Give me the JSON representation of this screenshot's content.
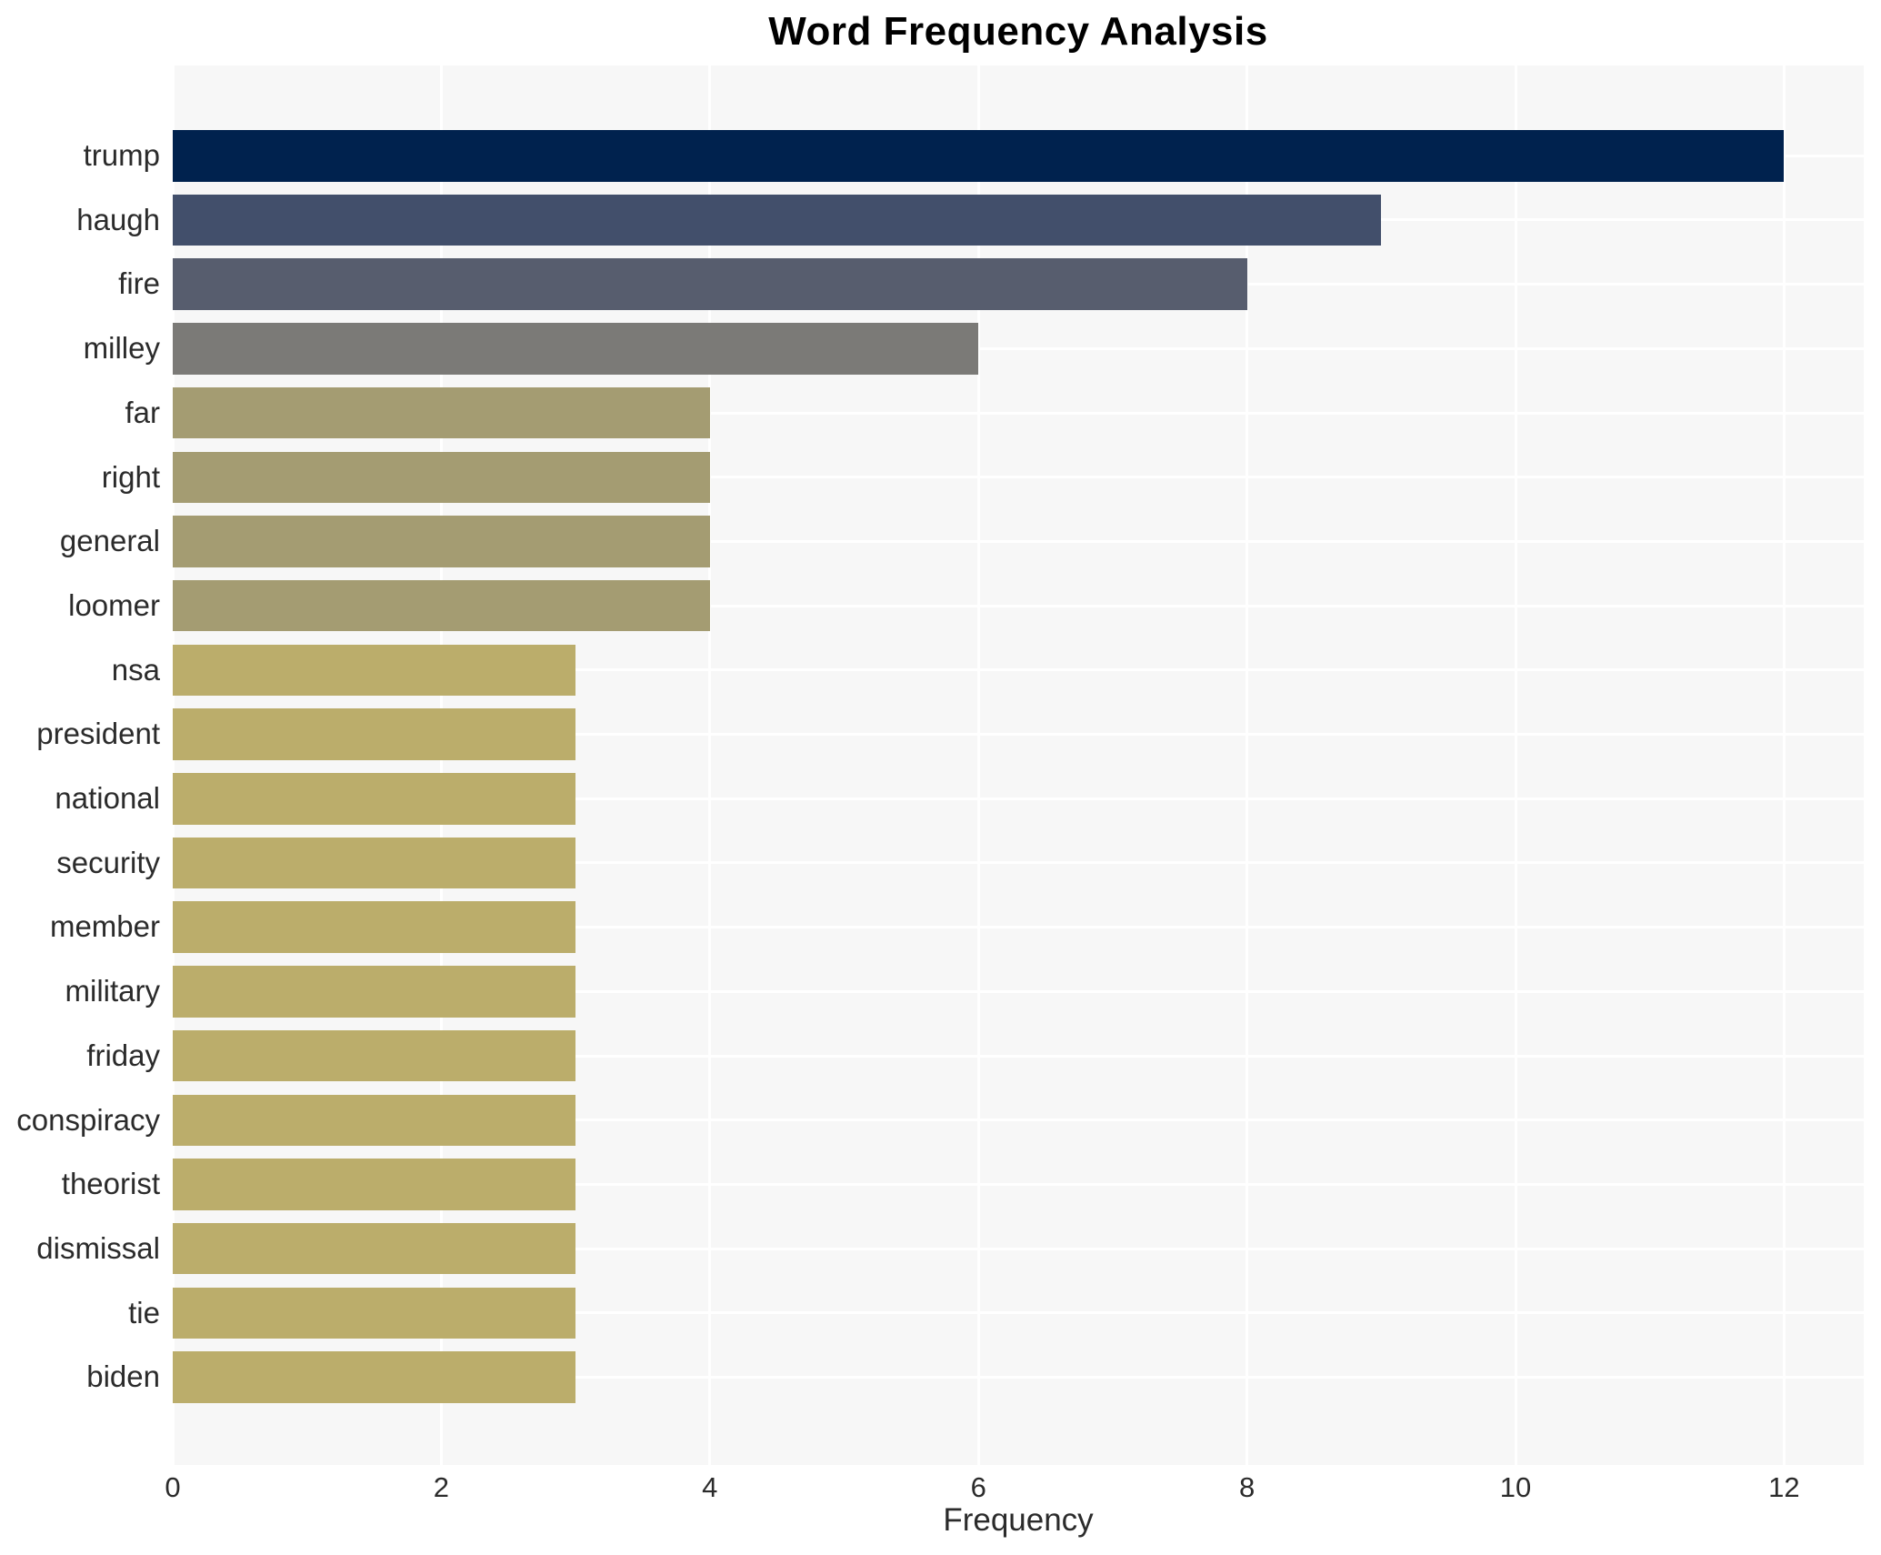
{
  "chart_data": {
    "type": "bar",
    "orientation": "horizontal",
    "title": "Word Frequency Analysis",
    "xlabel": "Frequency",
    "ylabel": "",
    "xlim": [
      0,
      12.6
    ],
    "xticks": [
      0,
      2,
      4,
      6,
      8,
      10,
      12
    ],
    "grid": true,
    "legend": false,
    "categories": [
      "trump",
      "haugh",
      "fire",
      "milley",
      "far",
      "right",
      "general",
      "loomer",
      "nsa",
      "president",
      "national",
      "security",
      "member",
      "military",
      "friday",
      "conspiracy",
      "theorist",
      "dismissal",
      "tie",
      "biden"
    ],
    "values": [
      12,
      9,
      8,
      6,
      4,
      4,
      4,
      4,
      3,
      3,
      3,
      3,
      3,
      3,
      3,
      3,
      3,
      3,
      3,
      3
    ],
    "bar_colors": [
      "#00224e",
      "#424f6b",
      "#575d6e",
      "#7b7a77",
      "#a49c72",
      "#a49c72",
      "#a49c72",
      "#a49c72",
      "#bbad6b",
      "#bbad6b",
      "#bbad6b",
      "#bbad6b",
      "#bbad6b",
      "#bbad6b",
      "#bbad6b",
      "#bbad6b",
      "#bbad6b",
      "#bbad6b",
      "#bbad6b",
      "#bbad6b"
    ],
    "colors": {
      "plot_background": "#f7f7f7",
      "gridline": "#ffffff",
      "tick_text": "#2b2b2b",
      "title_text": "#000000"
    }
  }
}
